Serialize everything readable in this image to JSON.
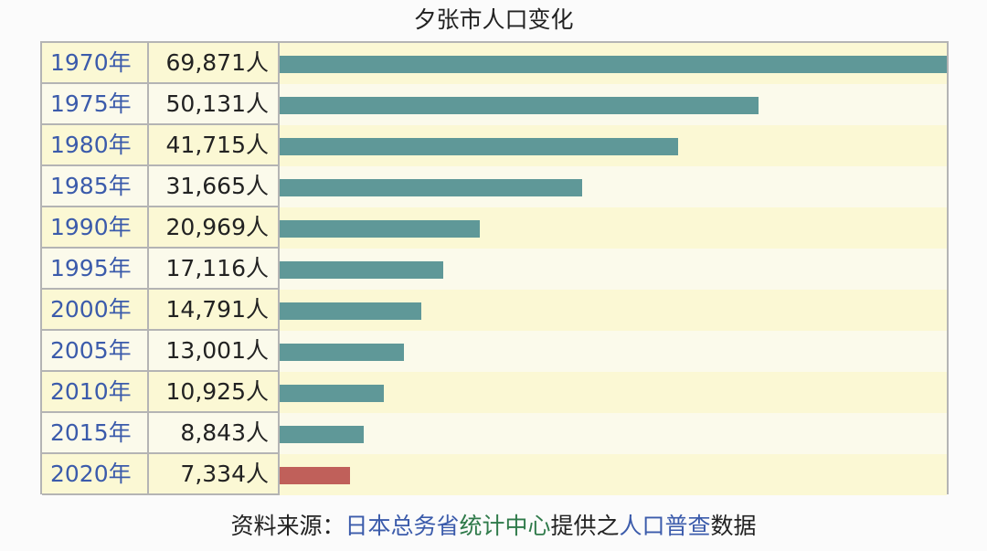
{
  "chart_data": {
    "type": "bar",
    "orientation": "horizontal",
    "title": "夕张市人口变化",
    "categories": [
      "1970年",
      "1975年",
      "1980年",
      "1985年",
      "1990年",
      "1995年",
      "2000年",
      "2005年",
      "2010年",
      "2015年",
      "2020年"
    ],
    "value_labels": [
      "69,871人",
      "50,131人",
      "41,715人",
      "31,665人",
      "20,969人",
      "17,116人",
      "14,791人",
      "13,001人",
      "10,925人",
      "8,843人",
      "7,334人"
    ],
    "values": [
      69871,
      50131,
      41715,
      31665,
      20969,
      17116,
      14791,
      13001,
      10925,
      8843,
      7334
    ],
    "xlim": [
      0,
      69871
    ],
    "colors": {
      "bar": "#5f9898",
      "highlight": "#c0605a"
    },
    "highlight_index": 10
  },
  "source": {
    "prefix": "资料来源：",
    "link1": "日本总务省",
    "link2": "统计中心",
    "mid": "提供之",
    "link3": "人口普查",
    "suffix": "数据"
  }
}
